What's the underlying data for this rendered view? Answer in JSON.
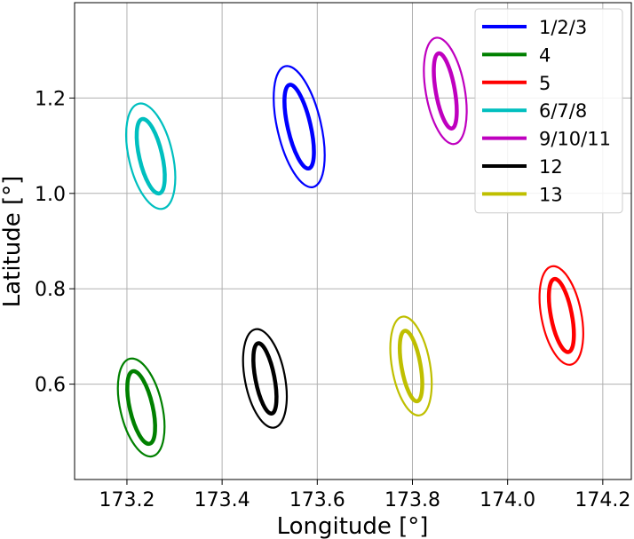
{
  "chart_data": {
    "type": "scatter",
    "title": "",
    "xlabel": "Longitude [°]",
    "ylabel": "Latitude [°]",
    "xlim": [
      173.09,
      174.26
    ],
    "ylim": [
      0.4,
      1.4
    ],
    "xticks": [
      173.2,
      173.4,
      173.6,
      173.8,
      174.0,
      174.2
    ],
    "xtick_labels": [
      "173.2",
      "173.4",
      "173.6",
      "173.8",
      "174.0",
      "174.2"
    ],
    "yticks": [
      0.6,
      0.8,
      1.0,
      1.2
    ],
    "ytick_labels": [
      "0.6",
      "0.8",
      "1.0",
      "1.2"
    ],
    "grid": true,
    "legend_position": "top-right",
    "series": [
      {
        "name": "1/2/3",
        "color": "#0000ff",
        "center": [
          173.562,
          1.14
        ],
        "inner_half_widths": [
          0.024,
          0.09
        ],
        "outer_half_widths": [
          0.046,
          0.13
        ],
        "tilt_deg": 13
      },
      {
        "name": "4",
        "color": "#008000",
        "center": [
          173.23,
          0.551
        ],
        "inner_half_widths": [
          0.024,
          0.078
        ],
        "outer_half_widths": [
          0.044,
          0.105
        ],
        "tilt_deg": 13
      },
      {
        "name": "5",
        "color": "#ff0000",
        "center": [
          174.113,
          0.744
        ],
        "inner_half_widths": [
          0.022,
          0.078
        ],
        "outer_half_widths": [
          0.042,
          0.105
        ],
        "tilt_deg": 11
      },
      {
        "name": "6/7/8",
        "color": "#00bfbf",
        "center": [
          173.25,
          1.078
        ],
        "inner_half_widths": [
          0.024,
          0.08
        ],
        "outer_half_widths": [
          0.046,
          0.113
        ],
        "tilt_deg": 13
      },
      {
        "name": "9/10/11",
        "color": "#bf00bf",
        "center": [
          173.869,
          1.215
        ],
        "inner_half_widths": [
          0.02,
          0.08
        ],
        "outer_half_widths": [
          0.041,
          0.113
        ],
        "tilt_deg": 10
      },
      {
        "name": "12",
        "color": "#000000",
        "center": [
          173.49,
          0.612
        ],
        "inner_half_widths": [
          0.02,
          0.075
        ],
        "outer_half_widths": [
          0.042,
          0.105
        ],
        "tilt_deg": 11
      },
      {
        "name": "13",
        "color": "#bfbf00",
        "center": [
          173.797,
          0.638
        ],
        "inner_half_widths": [
          0.02,
          0.075
        ],
        "outer_half_widths": [
          0.04,
          0.105
        ],
        "tilt_deg": 10
      }
    ]
  }
}
